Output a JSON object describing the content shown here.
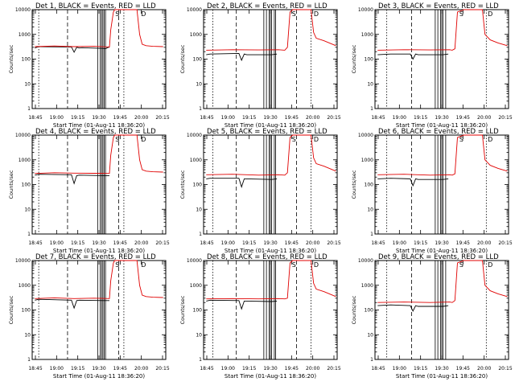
{
  "colors": {
    "events": "#000000",
    "lld": "#e00000",
    "background": "#ffffff"
  },
  "chart_data": [
    {
      "type": "line",
      "title": "Det 1, BLACK = Events, RED = LLD",
      "xlabel": "Start Time (01-Aug-11 18:36:20)",
      "ylabel": "Counts/sec",
      "xlim": [
        -0.02,
        1.0
      ],
      "ylim_log10": [
        0,
        4
      ],
      "xticks": [
        "18:45",
        "19:00",
        "19:15",
        "19:30",
        "19:45",
        "20:00",
        "20:15"
      ],
      "yticks": [
        "1",
        "10",
        "100",
        "1000",
        "10000"
      ],
      "series": [
        {
          "name": "Events",
          "x": [
            0.0,
            0.03,
            0.28,
            0.3,
            0.32,
            0.34,
            0.36,
            0.52,
            0.54,
            0.56,
            0.57
          ],
          "y": [
            280,
            320,
            310,
            190,
            300,
            280,
            290,
            270,
            260,
            300,
            300
          ]
        },
        {
          "name": "LLD",
          "x": [
            0.0,
            0.15,
            0.3,
            0.45,
            0.57,
            0.58,
            0.6,
            0.61,
            0.78,
            0.8,
            0.82,
            0.85,
            0.9,
            0.98
          ],
          "y": [
            320,
            340,
            320,
            330,
            310,
            1500,
            8000,
            10000,
            10000,
            1000,
            400,
            350,
            330,
            320
          ]
        }
      ],
      "v_solid": [
        0.48,
        0.5,
        0.51,
        0.52,
        0.53,
        0.54
      ],
      "v_dashed": [
        0.25,
        0.64
      ],
      "v_dotted": [
        0.03,
        0.68
      ],
      "markers": [
        {
          "x": 0.63,
          "label": "S"
        },
        {
          "x": 0.83,
          "label": "D"
        }
      ]
    },
    {
      "type": "line",
      "title": "Det 2, BLACK = Events, RED = LLD",
      "xlabel": "Start Time (01-Aug-11 18:36:20)",
      "ylabel": "Counts/sec",
      "xlim": [
        -0.02,
        1.0
      ],
      "ylim_log10": [
        0,
        4
      ],
      "xticks": [
        "18:45",
        "19:00",
        "19:15",
        "19:30",
        "19:45",
        "20:00",
        "20:15"
      ],
      "yticks": [
        "1",
        "10",
        "100",
        "1000",
        "10000"
      ],
      "series": [
        {
          "name": "Events",
          "x": [
            0.0,
            0.03,
            0.25,
            0.27,
            0.29,
            0.31,
            0.5,
            0.54
          ],
          "y": [
            150,
            160,
            170,
            90,
            160,
            150,
            150,
            160
          ]
        },
        {
          "name": "LLD",
          "x": [
            0.0,
            0.2,
            0.4,
            0.55,
            0.6,
            0.62,
            0.64,
            0.66,
            0.8,
            0.82,
            0.84,
            0.9,
            0.99
          ],
          "y": [
            230,
            240,
            235,
            240,
            230,
            300,
            8000,
            10000,
            10000,
            1200,
            700,
            550,
            350
          ]
        }
      ],
      "v_solid": [
        0.44,
        0.46,
        0.48,
        0.49,
        0.5,
        0.52,
        0.53
      ],
      "v_dashed": [
        0.23,
        0.69
      ],
      "v_dotted": [
        0.05,
        0.8
      ],
      "markers": [
        {
          "x": 0.67,
          "label": "S"
        },
        {
          "x": 0.84,
          "label": "D"
        }
      ]
    },
    {
      "type": "line",
      "title": "Det 3, BLACK = Events, RED = LLD",
      "xlabel": "Start Time (01-Aug-11 18:36:20)",
      "ylabel": "Counts/sec",
      "xlim": [
        -0.02,
        1.0
      ],
      "ylim_log10": [
        0,
        4
      ],
      "xticks": [
        "18:45",
        "19:00",
        "19:15",
        "19:30",
        "19:45",
        "20:00",
        "20:15"
      ],
      "yticks": [
        "1",
        "10",
        "100",
        "1000",
        "10000"
      ],
      "series": [
        {
          "name": "Events",
          "x": [
            0.0,
            0.1,
            0.25,
            0.27,
            0.29,
            0.31,
            0.5,
            0.54
          ],
          "y": [
            150,
            160,
            160,
            100,
            160,
            150,
            150,
            160
          ]
        },
        {
          "name": "LLD",
          "x": [
            0.0,
            0.2,
            0.4,
            0.55,
            0.57,
            0.59,
            0.61,
            0.66,
            0.68,
            0.8,
            0.82,
            0.86,
            0.92,
            0.99
          ],
          "y": [
            230,
            240,
            235,
            240,
            230,
            260,
            8000,
            10000,
            10000,
            10000,
            1000,
            600,
            450,
            350
          ]
        }
      ],
      "v_solid": [
        0.44,
        0.46,
        0.48,
        0.49,
        0.5,
        0.52
      ],
      "v_dashed": [
        0.26
      ],
      "v_dotted": [
        0.07,
        0.83
      ],
      "markers": [
        {
          "x": 0.64,
          "label": "S"
        },
        {
          "x": 0.86,
          "label": "D"
        }
      ]
    },
    {
      "type": "line",
      "title": "Det 4, BLACK = Events, RED = LLD",
      "xlabel": "Start Time (01-Aug-11 18:36:20)",
      "ylabel": "Counts/sec",
      "xlim": [
        -0.02,
        1.0
      ],
      "ylim_log10": [
        0,
        4
      ],
      "xticks": [
        "18:45",
        "19:00",
        "19:15",
        "19:30",
        "19:45",
        "20:00",
        "20:15"
      ],
      "yticks": [
        "1",
        "10",
        "100",
        "1000",
        "10000"
      ],
      "series": [
        {
          "name": "Events",
          "x": [
            0.0,
            0.03,
            0.28,
            0.3,
            0.32,
            0.34,
            0.52,
            0.56,
            0.57
          ],
          "y": [
            240,
            260,
            250,
            110,
            230,
            240,
            230,
            230,
            230
          ]
        },
        {
          "name": "LLD",
          "x": [
            0.0,
            0.15,
            0.3,
            0.45,
            0.57,
            0.58,
            0.6,
            0.61,
            0.78,
            0.8,
            0.82,
            0.85,
            0.9,
            0.98
          ],
          "y": [
            280,
            300,
            290,
            285,
            280,
            1500,
            8000,
            10000,
            10000,
            1000,
            400,
            350,
            330,
            320
          ]
        }
      ],
      "v_solid": [
        0.48,
        0.5,
        0.51,
        0.52,
        0.53,
        0.54
      ],
      "v_dashed": [
        0.25,
        0.64
      ],
      "v_dotted": [
        0.03,
        0.68
      ],
      "markers": [
        {
          "x": 0.63,
          "label": "S"
        },
        {
          "x": 0.83,
          "label": "D"
        }
      ]
    },
    {
      "type": "line",
      "title": "Det 5, BLACK = Events, RED = LLD",
      "xlabel": "Start Time (01-Aug-11 18:36:20)",
      "ylabel": "Counts/sec",
      "xlim": [
        -0.02,
        1.0
      ],
      "ylim_log10": [
        0,
        4
      ],
      "xticks": [
        "18:45",
        "19:00",
        "19:15",
        "19:30",
        "19:45",
        "20:00",
        "20:15"
      ],
      "yticks": [
        "1",
        "10",
        "100",
        "1000",
        "10000"
      ],
      "series": [
        {
          "name": "Events",
          "x": [
            0.0,
            0.03,
            0.25,
            0.27,
            0.29,
            0.31,
            0.5,
            0.54
          ],
          "y": [
            170,
            180,
            180,
            80,
            170,
            170,
            160,
            170
          ]
        },
        {
          "name": "LLD",
          "x": [
            0.0,
            0.2,
            0.4,
            0.55,
            0.6,
            0.62,
            0.64,
            0.66,
            0.8,
            0.82,
            0.84,
            0.9,
            0.99
          ],
          "y": [
            250,
            260,
            240,
            250,
            240,
            300,
            8000,
            10000,
            10000,
            1200,
            700,
            550,
            350
          ]
        }
      ],
      "v_solid": [
        0.44,
        0.46,
        0.48,
        0.49,
        0.5,
        0.52,
        0.53
      ],
      "v_dashed": [
        0.23,
        0.69
      ],
      "v_dotted": [
        0.05,
        0.8
      ],
      "markers": [
        {
          "x": 0.67,
          "label": "S"
        },
        {
          "x": 0.84,
          "label": "D"
        }
      ]
    },
    {
      "type": "line",
      "title": "Det 6, BLACK = Events, RED = LLD",
      "xlabel": "Start Time (01-Aug-11 18:36:20)",
      "ylabel": "Counts/sec",
      "xlim": [
        -0.02,
        1.0
      ],
      "ylim_log10": [
        0,
        4
      ],
      "xticks": [
        "18:45",
        "19:00",
        "19:15",
        "19:30",
        "19:45",
        "20:00",
        "20:15"
      ],
      "yticks": [
        "1",
        "10",
        "100",
        "1000",
        "10000"
      ],
      "series": [
        {
          "name": "Events",
          "x": [
            0.0,
            0.1,
            0.25,
            0.27,
            0.29,
            0.31,
            0.5,
            0.54
          ],
          "y": [
            170,
            180,
            170,
            90,
            170,
            160,
            160,
            170
          ]
        },
        {
          "name": "LLD",
          "x": [
            0.0,
            0.2,
            0.4,
            0.55,
            0.57,
            0.59,
            0.61,
            0.66,
            0.68,
            0.8,
            0.82,
            0.86,
            0.92,
            0.99
          ],
          "y": [
            250,
            260,
            240,
            250,
            240,
            270,
            8000,
            10000,
            10000,
            10000,
            1000,
            600,
            450,
            350
          ]
        }
      ],
      "v_solid": [
        0.44,
        0.46,
        0.48,
        0.49,
        0.5,
        0.52
      ],
      "v_dashed": [
        0.26
      ],
      "v_dotted": [
        0.07,
        0.83
      ],
      "markers": [
        {
          "x": 0.64,
          "label": "S"
        },
        {
          "x": 0.86,
          "label": "D"
        }
      ]
    },
    {
      "type": "line",
      "title": "Det 7, BLACK = Events, RED = LLD",
      "xlabel": "Start Time (01-Aug-11 18:36:20)",
      "ylabel": "Counts/sec",
      "xlim": [
        -0.02,
        1.0
      ],
      "ylim_log10": [
        0,
        4
      ],
      "xticks": [
        "18:45",
        "19:00",
        "19:15",
        "19:30",
        "19:45",
        "20:00",
        "20:15"
      ],
      "yticks": [
        "1",
        "10",
        "100",
        "1000",
        "10000"
      ],
      "series": [
        {
          "name": "Events",
          "x": [
            0.0,
            0.03,
            0.28,
            0.3,
            0.32,
            0.34,
            0.52,
            0.56,
            0.57
          ],
          "y": [
            250,
            270,
            250,
            120,
            240,
            250,
            240,
            240,
            240
          ]
        },
        {
          "name": "LLD",
          "x": [
            0.0,
            0.15,
            0.3,
            0.45,
            0.57,
            0.58,
            0.6,
            0.61,
            0.78,
            0.8,
            0.82,
            0.85,
            0.9,
            0.98
          ],
          "y": [
            290,
            310,
            290,
            300,
            290,
            1500,
            8000,
            10000,
            10000,
            1000,
            400,
            350,
            330,
            320
          ]
        }
      ],
      "v_solid": [
        0.48,
        0.5,
        0.51,
        0.52,
        0.53,
        0.54
      ],
      "v_dashed": [
        0.25,
        0.64
      ],
      "v_dotted": [
        0.03,
        0.68
      ],
      "markers": [
        {
          "x": 0.63,
          "label": "S"
        },
        {
          "x": 0.83,
          "label": "D"
        }
      ]
    },
    {
      "type": "line",
      "title": "Det 8, BLACK = Events, RED = LLD",
      "xlabel": "Start Time (01-Aug-11 18:36:20)",
      "ylabel": "Counts/sec",
      "xlim": [
        -0.02,
        1.0
      ],
      "ylim_log10": [
        0,
        4
      ],
      "xticks": [
        "18:45",
        "19:00",
        "19:15",
        "19:30",
        "19:45",
        "20:00",
        "20:15"
      ],
      "yticks": [
        "1",
        "10",
        "100",
        "1000",
        "10000"
      ],
      "series": [
        {
          "name": "Events",
          "x": [
            0.0,
            0.03,
            0.25,
            0.27,
            0.29,
            0.31,
            0.5,
            0.54
          ],
          "y": [
            230,
            250,
            240,
            110,
            230,
            230,
            220,
            230
          ]
        },
        {
          "name": "LLD",
          "x": [
            0.0,
            0.2,
            0.4,
            0.55,
            0.6,
            0.62,
            0.64,
            0.66,
            0.8,
            0.82,
            0.84,
            0.9,
            0.99
          ],
          "y": [
            280,
            290,
            280,
            290,
            280,
            300,
            8000,
            10000,
            10000,
            1200,
            700,
            550,
            350
          ]
        }
      ],
      "v_solid": [
        0.44,
        0.46,
        0.48,
        0.49,
        0.5,
        0.52,
        0.53
      ],
      "v_dashed": [
        0.23,
        0.69
      ],
      "v_dotted": [
        0.05,
        0.8
      ],
      "markers": [
        {
          "x": 0.67,
          "label": "S"
        },
        {
          "x": 0.84,
          "label": "D"
        }
      ]
    },
    {
      "type": "line",
      "title": "Det 9, BLACK = Events, RED = LLD",
      "xlabel": "Start Time (01-Aug-11 18:36:20)",
      "ylabel": "Counts/sec",
      "xlim": [
        -0.02,
        1.0
      ],
      "ylim_log10": [
        0,
        4
      ],
      "xticks": [
        "18:45",
        "19:00",
        "19:15",
        "19:30",
        "19:45",
        "20:00",
        "20:15"
      ],
      "yticks": [
        "1",
        "10",
        "100",
        "1000",
        "10000"
      ],
      "series": [
        {
          "name": "Events",
          "x": [
            0.0,
            0.1,
            0.25,
            0.27,
            0.29,
            0.31,
            0.5,
            0.54
          ],
          "y": [
            150,
            160,
            150,
            90,
            150,
            140,
            140,
            150
          ]
        },
        {
          "name": "LLD",
          "x": [
            0.0,
            0.2,
            0.4,
            0.55,
            0.57,
            0.59,
            0.61,
            0.66,
            0.68,
            0.8,
            0.82,
            0.86,
            0.92,
            0.99
          ],
          "y": [
            200,
            210,
            200,
            210,
            200,
            240,
            8000,
            10000,
            10000,
            10000,
            1000,
            600,
            450,
            350
          ]
        }
      ],
      "v_solid": [
        0.44,
        0.46,
        0.48,
        0.49,
        0.5,
        0.52
      ],
      "v_dashed": [
        0.26
      ],
      "v_dotted": [
        0.07,
        0.83
      ],
      "markers": [
        {
          "x": 0.64,
          "label": "S"
        },
        {
          "x": 0.86,
          "label": "D"
        }
      ]
    }
  ]
}
